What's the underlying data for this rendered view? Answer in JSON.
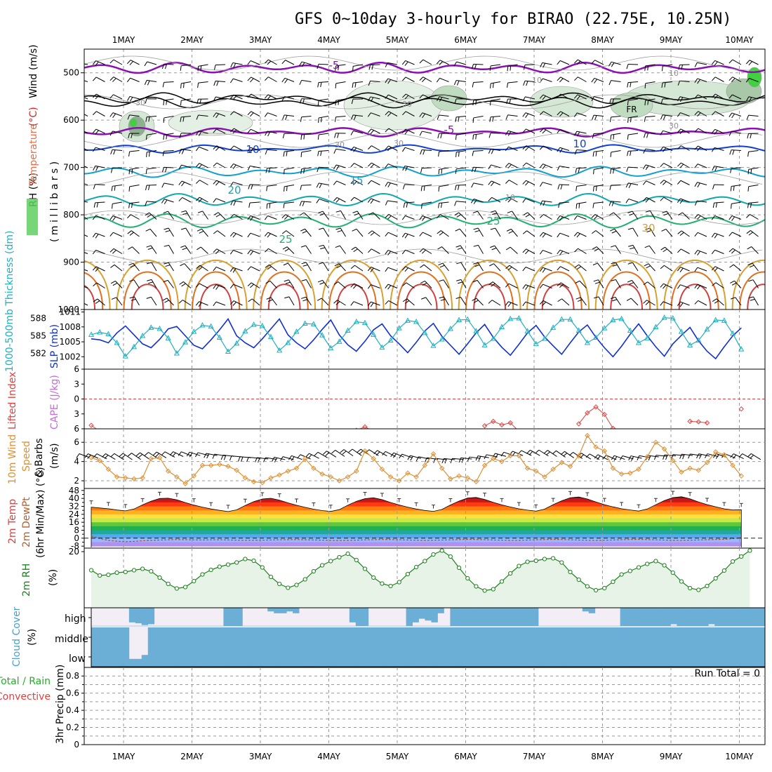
{
  "title": "GFS 0~10day 3-hourly for BIRAO (22.75E, 10.25N)",
  "date_labels": [
    "1MAY",
    "2MAY",
    "3MAY",
    "4MAY",
    "5MAY",
    "6MAY",
    "7MAY",
    "8MAY",
    "9MAY",
    "10MAY"
  ],
  "colors": {
    "temp_contour": "#8000b0",
    "rh_green": "#5fcf5f",
    "slp": "#1030d0",
    "thickness": "#20b0c0",
    "wind": "#e09030",
    "li": "#e04040",
    "rh2m": "#208020",
    "cloud": "#6baed6",
    "cloud_bg": "#f3eef6"
  },
  "chart_data": [
    {
      "type": "contour",
      "panel": "upper-air",
      "ylabel_parts": [
        "RH (%)",
        "Temperature",
        "(°C)",
        "Wind",
        "(m/s)"
      ],
      "ylabel_units": "( m i l l i b a r s )",
      "yticks": [
        500,
        600,
        700,
        800,
        900,
        1000
      ],
      "ylim": [
        450,
        1000
      ],
      "temperature_contour_labels": [
        "-5",
        "-5",
        "10",
        "10",
        "15",
        "20",
        "25",
        "25",
        "30"
      ],
      "rh_contour_labels": [
        "10",
        "10",
        "30",
        "30",
        "30",
        "30",
        "30",
        "10"
      ],
      "freezing_label": "FR"
    },
    {
      "type": "line",
      "panel": "thickness-slp",
      "ylabel_left": "1000-500mb Thickness (dm)",
      "ylabel_right": "SLP (mb)",
      "yticks_left": [
        582,
        585,
        588
      ],
      "yticks_right": [
        1002,
        1005,
        1008,
        1011
      ],
      "series": [
        {
          "name": "SLP (mb)",
          "values": [
            1005.6,
            1005.4,
            1004.8,
            1006.8,
            1008.2,
            1006.4,
            1004.6,
            1003.8,
            1005.5,
            1007.6,
            1008.1,
            1006.2,
            1004.3,
            1003.6,
            1005.4,
            1007.4,
            1009.6,
            1006.2,
            1004.8,
            1003.8,
            1005.6,
            1007.6,
            1009.6,
            1006.4,
            1004.8,
            1003.6,
            1005.4,
            1007.5,
            1009.4,
            1006.4,
            1004.4,
            1003.1,
            1005.1,
            1007.4,
            1008.6,
            1006.2,
            1004.6,
            1002.8,
            1004.9,
            1007.2,
            1008.7,
            1006.1,
            1004.3,
            1002.5,
            1004.6,
            1006.8,
            1008.5,
            1005.9,
            1003.9,
            1002.3,
            1004.5,
            1006.8,
            1008.3,
            1006.0,
            1004.2,
            1002.5,
            1004.8,
            1007.0,
            1008.4,
            1005.9,
            1003.8,
            1002.0,
            1004.1,
            1006.5,
            1008.6,
            1006.2,
            1004.0,
            1002.1,
            1004.6,
            1006.3,
            1007.9,
            1005.2,
            1003.1,
            1001.6,
            1004.0,
            1006.2,
            1007.8
          ]
        },
        {
          "name": "1000-500mb Thickness (dm)",
          "values": [
            585.2,
            585.6,
            585.3,
            583.8,
            581.5,
            583.1,
            585.0,
            586.4,
            586.2,
            584.6,
            582.0,
            583.9,
            585.7,
            586.8,
            586.6,
            584.7,
            582.3,
            583.7,
            585.8,
            586.9,
            586.7,
            584.8,
            582.5,
            583.8,
            585.7,
            587.1,
            587.0,
            585.1,
            582.9,
            584.0,
            585.9,
            587.4,
            587.2,
            585.2,
            583.0,
            584.2,
            586.3,
            587.6,
            587.4,
            585.5,
            583.3,
            584.4,
            586.2,
            587.7,
            587.8,
            585.8,
            583.4,
            584.5,
            586.5,
            587.9,
            588.0,
            585.8,
            583.6,
            584.5,
            586.4,
            587.8,
            587.8,
            585.9,
            583.8,
            584.7,
            586.3,
            587.7,
            587.9,
            585.9,
            583.8,
            584.6,
            586.5,
            588.1,
            588.0,
            585.7,
            583.4,
            584.2,
            586.1,
            587.7,
            587.6,
            585.4,
            582.7
          ]
        }
      ]
    },
    {
      "type": "line",
      "panel": "stability",
      "ylabel_left": "Lifted Index",
      "ylabel_right": "CAPE (J/kg)",
      "yticks": [
        -6,
        -3,
        0,
        3,
        6
      ],
      "series": [
        {
          "name": "Lifted Index",
          "values": [
            5.3,
            6.5,
            null,
            null,
            null,
            null,
            null,
            null,
            null,
            null,
            null,
            null,
            null,
            null,
            null,
            null,
            null,
            null,
            null,
            null,
            null,
            null,
            null,
            null,
            null,
            null,
            null,
            null,
            null,
            null,
            null,
            6.3,
            5.6,
            6.5,
            null,
            null,
            null,
            null,
            null,
            null,
            null,
            null,
            null,
            null,
            null,
            null,
            5.4,
            4.5,
            5.2,
            4.8,
            6.5,
            null,
            null,
            null,
            null,
            null,
            null,
            5.0,
            2.8,
            1.6,
            3.1,
            5.9,
            null,
            null,
            null,
            null,
            null,
            null,
            null,
            null,
            4.5,
            4.6,
            4.8,
            null,
            null,
            null,
            2.0
          ]
        }
      ]
    },
    {
      "type": "line",
      "panel": "wind10m",
      "ylabel_left": "10m Wind",
      "ylabel_mid": "Speed",
      "ylabel_right": "& Barbs",
      "ylabel_units": "(m/s)",
      "yticks": [
        2,
        4,
        6
      ],
      "series": [
        {
          "name": "Speed",
          "values": [
            4.4,
            4.1,
            3.2,
            2.4,
            2.3,
            2.2,
            2.3,
            4.3,
            4.4,
            3.0,
            2.4,
            1.7,
            2.5,
            3.6,
            3.6,
            3.7,
            3.5,
            3.1,
            2.3,
            1.9,
            1.8,
            2.3,
            2.6,
            3.0,
            3.3,
            4.3,
            3.3,
            2.7,
            2.4,
            2.0,
            2.4,
            3.0,
            5.1,
            4.3,
            3.2,
            2.4,
            2.0,
            2.8,
            2.4,
            3.6,
            4.8,
            3.3,
            2.2,
            2.5,
            2.3,
            1.9,
            3.6,
            4.3,
            4.0,
            4.6,
            4.6,
            3.3,
            3.0,
            2.4,
            3.2,
            3.9,
            3.5,
            4.6,
            6.7,
            5.5,
            5.1,
            3.3,
            2.7,
            2.8,
            3.2,
            4.5,
            6.0,
            5.3,
            4.1,
            2.9,
            3.3,
            3.1,
            3.9,
            5.0,
            4.7,
            3.6,
            2.5
          ]
        }
      ]
    },
    {
      "type": "area",
      "panel": "temp2m",
      "ylabel_left": "2m Temp",
      "ylabel_mid": "2m DewPt",
      "ylabel_right": "(6hr Min/Max) (°C)",
      "yticks": [
        -8,
        0,
        8,
        16,
        24,
        32,
        40,
        48
      ],
      "yticks_extra": [
        -4,
        4,
        12,
        20,
        28,
        36,
        44
      ],
      "series": [
        {
          "name": "2m Temp",
          "values": [
            31.2,
            30.4,
            29.6,
            28.3,
            27.5,
            29.3,
            33.5,
            37.2,
            39.9,
            40.2,
            38.6,
            35.8,
            33.3,
            31.2,
            29.4,
            28.0,
            26.8,
            28.5,
            32.9,
            36.7,
            39.4,
            40.1,
            38.3,
            35.5,
            33.1,
            31.0,
            29.2,
            27.8,
            26.9,
            28.7,
            33.2,
            37.0,
            39.8,
            40.6,
            38.8,
            35.9,
            33.4,
            31.2,
            29.3,
            27.9,
            27.0,
            28.9,
            33.4,
            37.3,
            40.3,
            41.0,
            39.0,
            36.0,
            33.5,
            31.4,
            29.5,
            28.2,
            27.2,
            29.2,
            33.7,
            37.6,
            40.6,
            41.4,
            39.4,
            36.4,
            33.7,
            31.5,
            29.6,
            28.4,
            27.3,
            29.3,
            33.6,
            37.8,
            40.8,
            41.7,
            39.6,
            36.4,
            33.8,
            31.6,
            29.5,
            28.3,
            28.6
          ]
        },
        {
          "name": "2m DewPt",
          "values": [
            2.2,
            -0.3,
            -2.2,
            -3.0,
            -3.5,
            -3.2,
            -2.6,
            -2.2,
            -1.9,
            -1.6,
            -1.4,
            -1.5,
            -1.7,
            -1.8,
            -1.7,
            -1.6,
            -1.8,
            -2.0,
            -2.2,
            -2.1,
            -2.0,
            -1.8,
            -1.6,
            -1.5,
            -1.4,
            -1.6,
            -1.8,
            -2.0,
            -2.2,
            -2.4,
            -2.2,
            -2.0,
            -1.7,
            -1.5,
            -1.3,
            -1.4,
            -1.6,
            -1.8,
            -2.1,
            -2.3,
            -2.1,
            -1.9,
            -1.7,
            -1.4,
            -1.2,
            -1.3,
            -1.5,
            -1.8,
            -2.0,
            -2.3,
            -2.2,
            -1.9,
            -1.6,
            -1.4,
            -1.2,
            -1.3,
            -1.6,
            -1.9,
            -2.1,
            -2.3,
            -2.1,
            -1.8,
            -1.5,
            -1.3,
            -1.2,
            -1.4,
            -1.7,
            -1.9,
            -2.2,
            -2.3,
            -2.0,
            -1.8,
            -1.5,
            -1.3,
            -1.2,
            -0.5,
            0.5
          ]
        }
      ]
    },
    {
      "type": "area",
      "panel": "rh2m",
      "ylabel_left": "2m RH",
      "ylabel_units": "(%)",
      "yticks": [
        20
      ],
      "ylim": [
        4,
        21
      ],
      "series": [
        {
          "name": "2m RH",
          "values": [
            14.7,
            13.2,
            13.4,
            14.0,
            14.2,
            14.7,
            15.1,
            14.4,
            12.6,
            10.8,
            9.5,
            9.9,
            11.6,
            13.5,
            14.8,
            15.7,
            16.3,
            16.9,
            17.9,
            17.4,
            15.5,
            12.8,
            10.8,
            9.7,
            10.5,
            12.1,
            14.4,
            16.1,
            17.3,
            18.4,
            19.4,
            17.6,
            15.1,
            12.6,
            10.9,
            10.2,
            11.3,
            13.6,
            15.6,
            17.3,
            19.2,
            20.3,
            18.6,
            15.4,
            12.4,
            10.1,
            8.9,
            9.3,
            11.5,
            13.8,
            15.9,
            17.1,
            17.4,
            17.9,
            18.1,
            16.9,
            14.2,
            12.0,
            10.1,
            9.0,
            9.6,
            11.4,
            13.5,
            14.5,
            15.5,
            16.5,
            17.3,
            16.1,
            14.0,
            11.5,
            9.6,
            9.1,
            10.2,
            12.4,
            14.6,
            17.2,
            18.6,
            20.3
          ]
        }
      ]
    },
    {
      "type": "area",
      "panel": "cloud",
      "ylabel_left": "Cloud Cover",
      "ylabel_units": "(%)",
      "level_labels": [
        "high",
        "middle",
        "low"
      ],
      "series": [
        {
          "name": "high",
          "values": [
            0,
            0,
            0,
            0,
            0,
            0,
            80,
            85,
            95,
            90,
            0,
            0,
            0,
            0,
            0,
            0,
            0,
            0,
            0,
            0,
            0,
            100,
            100,
            100,
            0,
            0,
            0,
            0,
            20,
            30,
            30,
            20,
            30,
            0,
            0,
            0,
            0,
            0,
            0,
            0,
            0,
            80,
            100,
            100,
            0,
            0,
            0,
            0,
            0,
            0,
            100,
            80,
            60,
            70,
            80,
            30,
            0,
            100,
            100,
            100,
            100,
            100,
            100,
            100,
            100,
            100,
            100,
            100,
            100,
            100,
            100,
            0,
            0,
            0,
            0,
            0,
            0,
            0,
            20,
            30,
            0,
            0,
            0,
            0,
            100,
            100,
            100,
            100,
            100,
            100,
            100,
            100,
            90,
            100,
            100,
            100,
            100,
            100,
            90,
            100,
            100,
            100,
            100,
            100,
            100,
            100,
            100
          ]
        },
        {
          "name": "middle",
          "values": [
            100,
            100,
            100,
            100,
            100,
            100,
            20,
            20,
            30,
            100,
            100,
            100,
            100,
            100,
            100,
            100,
            100,
            100,
            100,
            100,
            100,
            100,
            100,
            100,
            100,
            100,
            100,
            100,
            100,
            100,
            100,
            100,
            100,
            100,
            100,
            100,
            100,
            100,
            100,
            100,
            100,
            100,
            100,
            100,
            100,
            100,
            100,
            100,
            100,
            100,
            100,
            100,
            100,
            100,
            100,
            100,
            100,
            100,
            100,
            100,
            100,
            100,
            100,
            100,
            100,
            100,
            100,
            100,
            100,
            100,
            100,
            100,
            100,
            100,
            100,
            100,
            100,
            100,
            100,
            100,
            100,
            100,
            100,
            100,
            100,
            100,
            100,
            100,
            100,
            100,
            100,
            100,
            100,
            100,
            100,
            100,
            100,
            100,
            100,
            100,
            100,
            100,
            100,
            100,
            100,
            100,
            100
          ]
        }
      ]
    },
    {
      "type": "bar",
      "panel": "precip",
      "ylabel_left": "Total / Rain",
      "ylabel_mid": "Convective",
      "ylabel_units": "3hr Precip (mm)",
      "yticks": [
        "0",
        "0.2",
        "0.4",
        "0.6",
        "0.8"
      ],
      "ylim": [
        0,
        0.9
      ],
      "annotation": "Run Total = 0",
      "values": []
    }
  ]
}
